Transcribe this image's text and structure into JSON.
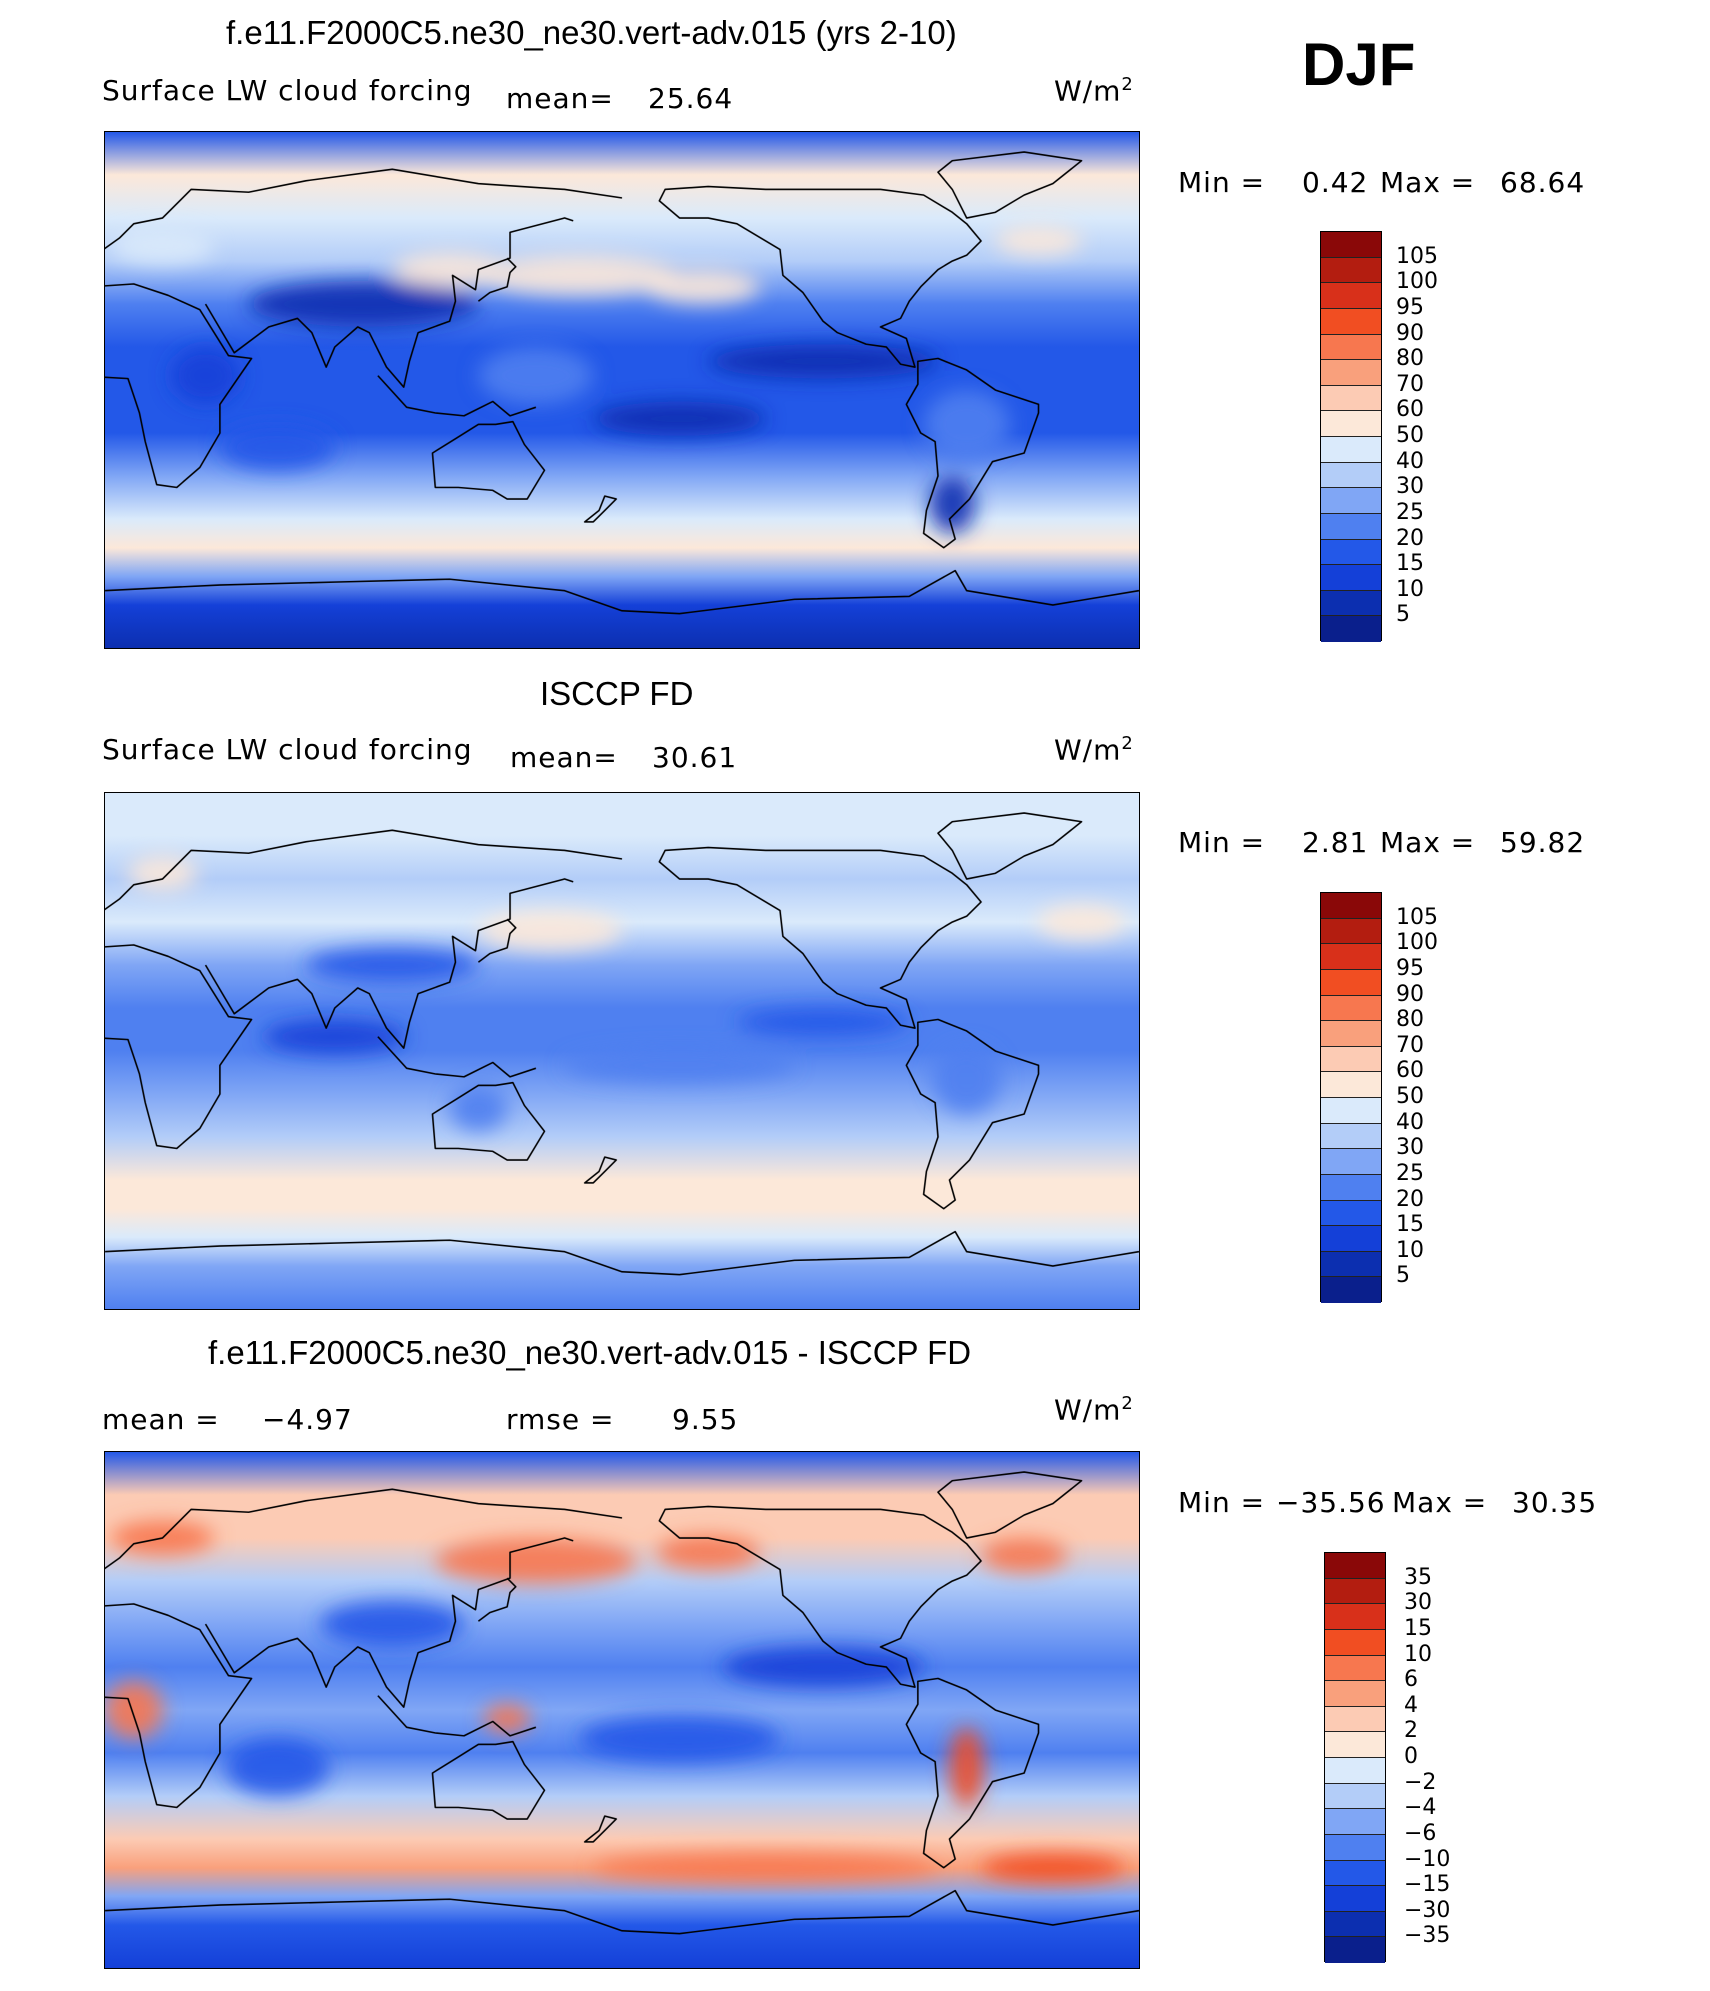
{
  "header": {
    "season": "DJF",
    "units": "W/m",
    "units_sup": "2"
  },
  "palette": {
    "abs": [
      "#0a1f8c",
      "#0c2fb0",
      "#1440d8",
      "#2358e8",
      "#4f80f0",
      "#80a6f5",
      "#b3cdf8",
      "#daeafb",
      "#fce8d9",
      "#fccbb4",
      "#f9a07c",
      "#f7774f",
      "#f14e22",
      "#d8301a",
      "#b31d10",
      "#8a0808"
    ],
    "diff": [
      "#0a1f8c",
      "#0c2fb0",
      "#1440d8",
      "#2358e8",
      "#4f80f0",
      "#80a6f5",
      "#b3cdf8",
      "#daeafb",
      "#fce8d9",
      "#fccbb4",
      "#f9a07c",
      "#f7774f",
      "#f14e22",
      "#d8301a",
      "#b31d10",
      "#8a0808"
    ]
  },
  "chart_data": [
    {
      "type": "heatmap",
      "title": "f.e11.F2000C5.ne30_ne30.vert-adv.015 (yrs 2-10)",
      "variable": "Surface LW cloud forcing",
      "mean_label": "mean=",
      "mean": "25.64",
      "units": "W/m2",
      "min_label": "Min =",
      "min": "0.42",
      "max_label": "Max =",
      "max": "68.64",
      "colorbar_levels": [
        "105",
        "100",
        "95",
        "90",
        "80",
        "70",
        "60",
        "50",
        "40",
        "30",
        "25",
        "20",
        "15",
        "10",
        "5"
      ],
      "projection": "global cylindrical equidistant, Pacific-centered",
      "field": "model",
      "zonal_profile": [
        {
          "lat": 90,
          "level": 3
        },
        {
          "lat": 75,
          "level": 8
        },
        {
          "lat": 60,
          "level": 7
        },
        {
          "lat": 45,
          "level": 6
        },
        {
          "lat": 30,
          "level": 4
        },
        {
          "lat": 15,
          "level": 3
        },
        {
          "lat": 0,
          "level": 3
        },
        {
          "lat": -15,
          "level": 3
        },
        {
          "lat": -30,
          "level": 5
        },
        {
          "lat": -45,
          "level": 7
        },
        {
          "lat": -55,
          "level": 8
        },
        {
          "lat": -65,
          "level": 5
        },
        {
          "lat": -75,
          "level": 2
        },
        {
          "lat": -90,
          "level": 1
        }
      ]
    },
    {
      "type": "heatmap",
      "title": "ISCCP FD",
      "variable": "Surface LW cloud forcing",
      "mean_label": "mean=",
      "mean": "30.61",
      "units": "W/m2",
      "min_label": "Min =",
      "min": "2.81",
      "max_label": "Max =",
      "max": "59.82",
      "colorbar_levels": [
        "105",
        "100",
        "95",
        "90",
        "80",
        "70",
        "60",
        "50",
        "40",
        "30",
        "25",
        "20",
        "15",
        "10",
        "5"
      ],
      "projection": "global cylindrical equidistant, Pacific-centered",
      "field": "observations",
      "zonal_profile": [
        {
          "lat": 90,
          "level": 7
        },
        {
          "lat": 75,
          "level": 7
        },
        {
          "lat": 60,
          "level": 6
        },
        {
          "lat": 45,
          "level": 7
        },
        {
          "lat": 30,
          "level": 5
        },
        {
          "lat": 15,
          "level": 4
        },
        {
          "lat": 0,
          "level": 4
        },
        {
          "lat": -15,
          "level": 5
        },
        {
          "lat": -30,
          "level": 6
        },
        {
          "lat": -45,
          "level": 8
        },
        {
          "lat": -55,
          "level": 8
        },
        {
          "lat": -65,
          "level": 7
        },
        {
          "lat": -75,
          "level": 5
        },
        {
          "lat": -90,
          "level": 4
        }
      ]
    },
    {
      "type": "heatmap",
      "title": "f.e11.F2000C5.ne30_ne30.vert-adv.015 - ISCCP FD",
      "mean_label": "mean =",
      "mean": "−4.97",
      "rmse_label": "rmse =",
      "rmse": "9.55",
      "units": "W/m2",
      "min_label": "Min =",
      "min": "−35.56",
      "max_label": "Max =",
      "max": "30.35",
      "colorbar_levels": [
        "35",
        "30",
        "15",
        "10",
        "6",
        "4",
        "2",
        "0",
        "−2",
        "−4",
        "−6",
        "−10",
        "−15",
        "−30",
        "−35"
      ],
      "projection": "global cylindrical equidistant, Pacific-centered",
      "field": "difference",
      "zonal_profile": [
        {
          "lat": 90,
          "level": 3
        },
        {
          "lat": 75,
          "level": 9
        },
        {
          "lat": 60,
          "level": 9
        },
        {
          "lat": 45,
          "level": 6
        },
        {
          "lat": 30,
          "level": 5
        },
        {
          "lat": 15,
          "level": 4
        },
        {
          "lat": 0,
          "level": 5
        },
        {
          "lat": -15,
          "level": 4
        },
        {
          "lat": -30,
          "level": 6
        },
        {
          "lat": -45,
          "level": 9
        },
        {
          "lat": -55,
          "level": 10
        },
        {
          "lat": -65,
          "level": 5
        },
        {
          "lat": -75,
          "level": 3
        },
        {
          "lat": -90,
          "level": 2
        }
      ]
    }
  ]
}
